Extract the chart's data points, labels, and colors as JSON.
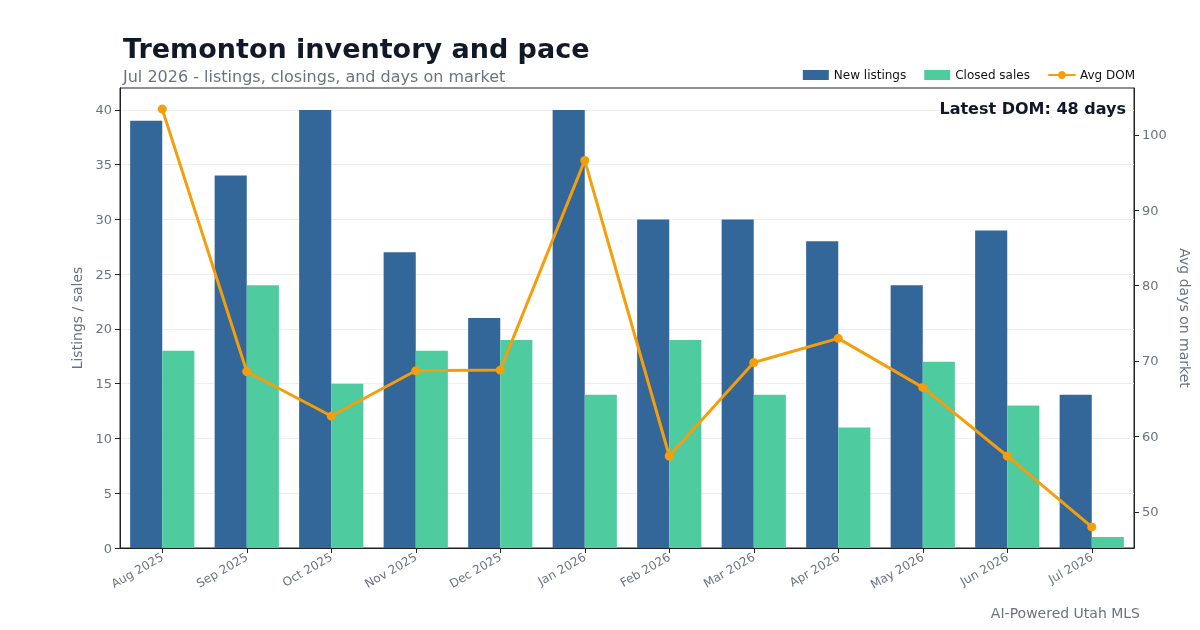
{
  "chart_data": {
    "type": "bar",
    "title": "Tremonton inventory and pace",
    "subtitle": "Jul 2026 - listings, closings, and days on market",
    "ylabel": "Listings / sales",
    "y2label": "Avg days on market",
    "categories": [
      "Aug 2025",
      "Sep 2025",
      "Oct 2025",
      "Nov 2025",
      "Dec 2025",
      "Jan 2026",
      "Feb 2026",
      "Mar 2026",
      "Apr 2026",
      "May 2026",
      "Jun 2026",
      "Jul 2026"
    ],
    "series": [
      {
        "name": "New listings",
        "color": "#336699",
        "values": [
          39,
          34,
          40,
          27,
          21,
          40,
          30,
          30,
          28,
          24,
          29,
          14
        ]
      },
      {
        "name": "Closed sales",
        "color": "#4ecb9f",
        "values": [
          18,
          24,
          15,
          18,
          19,
          14,
          19,
          14,
          11,
          17,
          13,
          1
        ]
      },
      {
        "name": "Avg DOM",
        "type": "line",
        "axis": "y2",
        "color": "#f59e0b",
        "values": [
          103.4,
          68.6,
          62.7,
          68.7,
          68.8,
          96.6,
          57.4,
          69.8,
          73,
          66.5,
          57.4,
          48
        ]
      }
    ],
    "ylim": [
      0,
      42
    ],
    "yticks": [
      0,
      5,
      10,
      15,
      20,
      25,
      30,
      35,
      40
    ],
    "y2lim": [
      45.2,
      106.2
    ],
    "y2ticks": [
      50,
      60,
      70,
      80,
      90,
      100
    ],
    "grid": "y",
    "legend": "top right",
    "marker": "circle",
    "line_style": "solid",
    "annotations": [
      "Latest DOM: 48 days",
      "AI-Powered Utah MLS"
    ]
  }
}
